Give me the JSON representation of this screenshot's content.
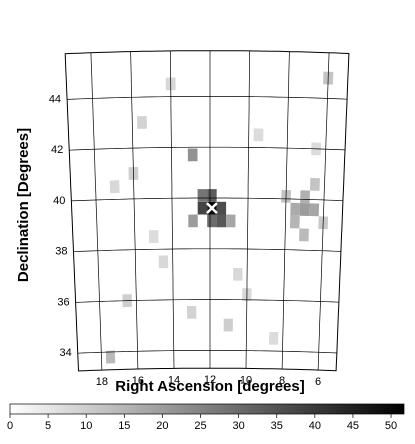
{
  "chart_data": {
    "type": "skymap",
    "x_label": "Right Ascension [degrees]",
    "y_label": "Declination [Degrees]",
    "xlim": [
      19.3,
      5.0
    ],
    "ylim": [
      33.3,
      45.8
    ],
    "xticks": [
      18,
      16,
      14,
      12,
      10,
      8,
      6
    ],
    "yticks": [
      34,
      36,
      38,
      40,
      42,
      44
    ],
    "x": [
      11.9,
      12.4,
      11.4,
      11.9,
      12.4,
      11.4,
      11.9,
      10.9,
      12.9,
      7.0,
      7.5,
      6.5,
      7.0,
      7.5,
      6.5,
      7.0,
      8.0,
      6.0,
      12.9,
      16.0,
      15.5,
      16.5,
      14.5,
      13.0,
      10.0,
      8.5,
      6.0,
      17.5,
      15.0,
      11.0,
      14.0,
      9.5,
      17.0,
      6.5,
      10.5
    ],
    "y": [
      39.6,
      39.6,
      39.6,
      40.1,
      40.1,
      39.1,
      39.1,
      39.1,
      39.1,
      39.6,
      39.6,
      39.6,
      40.1,
      39.1,
      40.6,
      38.6,
      40.1,
      39.1,
      41.7,
      41.0,
      43.0,
      36.0,
      37.5,
      35.5,
      36.2,
      34.5,
      44.8,
      33.8,
      38.5,
      35.0,
      44.5,
      42.5,
      40.5,
      42.0,
      37.0
    ],
    "values": [
      50,
      38,
      36,
      33,
      28,
      34,
      30,
      18,
      20,
      20,
      17,
      18,
      16,
      15,
      12,
      14,
      12,
      11,
      22,
      10,
      9,
      10,
      8,
      9,
      8,
      7,
      12,
      14,
      7,
      10,
      8,
      7,
      8,
      7,
      8
    ],
    "marker": {
      "x": 11.9,
      "y": 39.6
    },
    "colorbar": {
      "lim": [
        0,
        51.7
      ],
      "ticks": [
        0,
        5,
        10,
        15,
        20,
        25,
        30,
        35,
        40,
        45,
        50
      ]
    }
  }
}
